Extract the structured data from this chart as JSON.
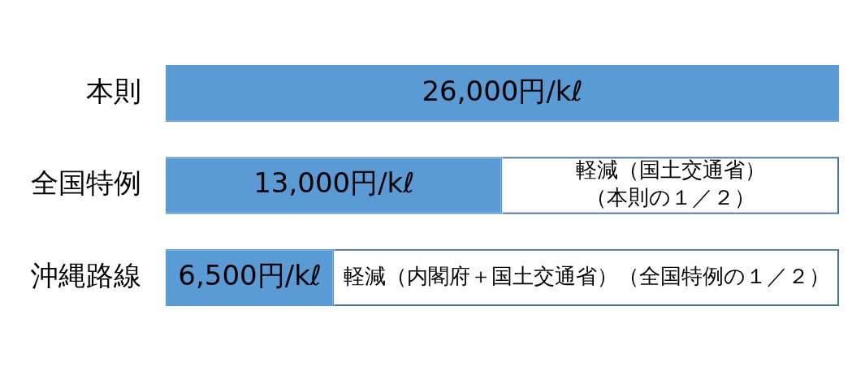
{
  "chart_data": {
    "type": "bar",
    "orientation": "horizontal",
    "stacked": true,
    "categories": [
      "本則",
      "全国特例",
      "沖縄路線"
    ],
    "series": [
      {
        "color": "#5b9bd5",
        "values": [
          26000,
          13000,
          6500
        ],
        "value_labels": [
          "26,000円/kℓ",
          "13,000円/kℓ",
          "6,500円/kℓ"
        ]
      },
      {
        "color": "#41719c",
        "line_style": "dashed",
        "values": [
          null,
          13000,
          19500
        ],
        "value_labels": [
          null,
          "軽減（国土交通省）（本則の１／２）",
          "軽減（内閣府＋国土交通省）（全国特例の１／２）"
        ]
      }
    ],
    "grid": false,
    "legend": false
  }
}
